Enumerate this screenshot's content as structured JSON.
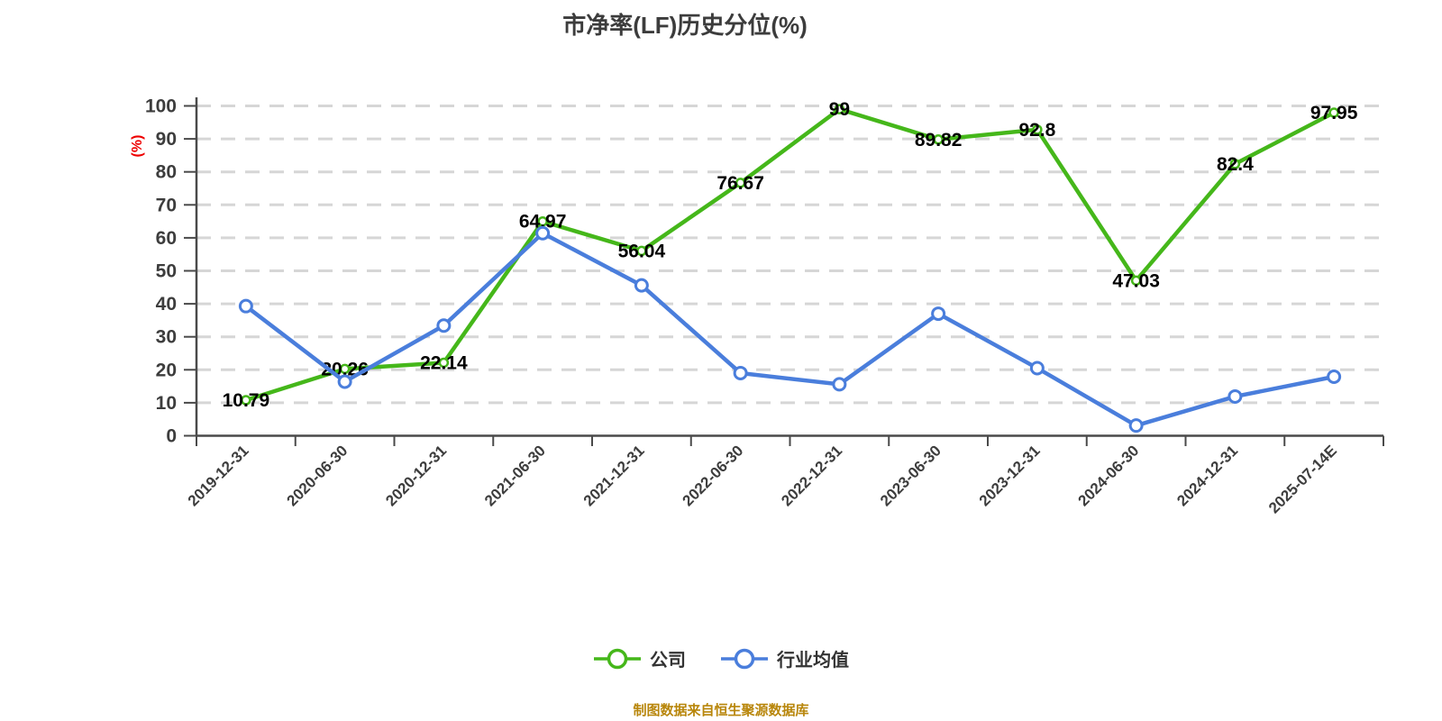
{
  "title": "市净率(LF)历史分位(%)",
  "footer": "制图数据来自恒生聚源数据库",
  "chart_data": {
    "type": "line",
    "title": "市净率(LF)历史分位(%)",
    "xlabel": "",
    "ylabel": "(%)",
    "ylim": [
      0,
      100
    ],
    "ytick_step": 10,
    "grid": "horizontal-dashed",
    "legend_position": "bottom",
    "categories": [
      "2019-12-31",
      "2020-06-30",
      "2020-12-31",
      "2021-06-30",
      "2021-12-31",
      "2022-06-30",
      "2022-12-31",
      "2023-06-30",
      "2023-12-31",
      "2024-06-30",
      "2024-12-31",
      "2025-07-14E"
    ],
    "series": [
      {
        "name": "公司",
        "color": "#45b71a",
        "marker_fill": "#ffffff",
        "show_labels": true,
        "values": [
          10.79,
          20.26,
          22.14,
          64.97,
          56.04,
          76.67,
          99,
          89.82,
          92.8,
          47.03,
          82.4,
          97.95
        ]
      },
      {
        "name": "行业均值",
        "color": "#4a7edc",
        "marker_fill": "#ffffff",
        "show_labels": false,
        "values": [
          39.3,
          16.4,
          33.4,
          61.4,
          45.6,
          19.0,
          15.6,
          37.0,
          20.5,
          3.1,
          11.9,
          17.9
        ]
      }
    ],
    "colors": {
      "axis": "#4a4a4a",
      "grid": "#d6d6d6",
      "tick_label": "#3d3d3d",
      "data_label": "#000000",
      "ylabel": "#ee0000",
      "title": "#3c3c3c",
      "footer": "#b8860b",
      "legend_text": "#333333"
    }
  }
}
